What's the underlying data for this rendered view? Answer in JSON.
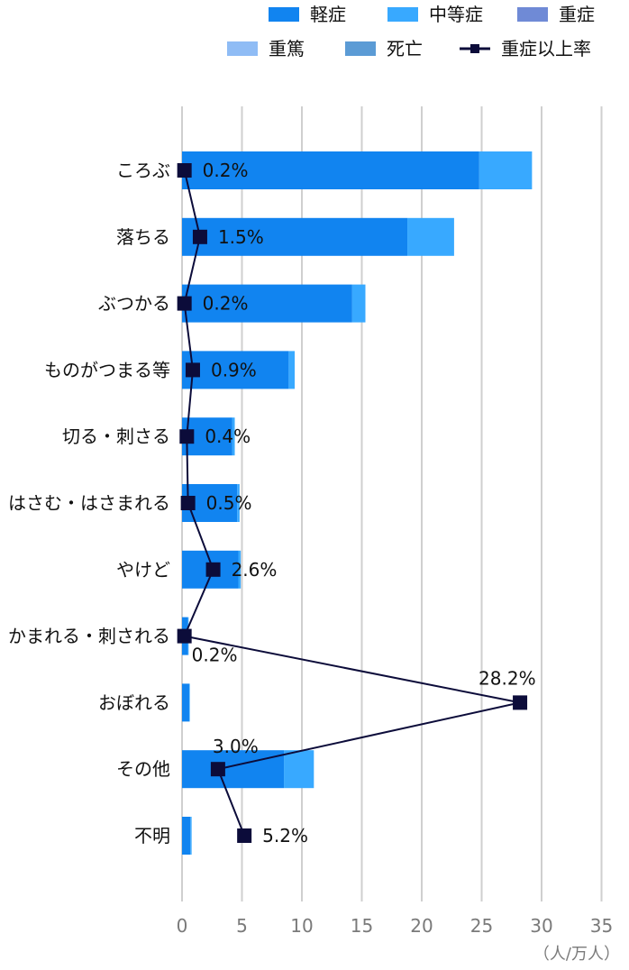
{
  "colors": {
    "mild": "#1184f0",
    "moderate": "#38a9ff",
    "severe": "#6f8ad6",
    "critical": "#8fbcf5",
    "death": "#5b9bd5",
    "severe_rate_line": "#0c0c3a",
    "grid": "#cfcfcf",
    "axis_text": "#7a7a7a"
  },
  "chart_data": {
    "type": "bar",
    "orientation": "horizontal",
    "stacked": true,
    "categories": [
      "ころぶ",
      "落ちる",
      "ぶつかる",
      "ものがつまる等",
      "切る・刺さる",
      "はさむ・はさまれる",
      "やけど",
      "かまれる・刺される",
      "おぼれる",
      "その他",
      "不明"
    ],
    "series": [
      {
        "name": "軽症",
        "values": [
          24.8,
          18.8,
          14.2,
          8.9,
          4.2,
          4.6,
          4.7,
          0.5,
          0.6,
          8.5,
          0.7
        ]
      },
      {
        "name": "中等症",
        "values": [
          4.4,
          3.9,
          1.1,
          0.5,
          0.2,
          0.2,
          0.2,
          0.05,
          0.05,
          2.5,
          0.1
        ]
      },
      {
        "name": "重症",
        "values": [
          0,
          0,
          0,
          0,
          0,
          0,
          0,
          0,
          0,
          0,
          0
        ]
      },
      {
        "name": "重篤",
        "values": [
          0,
          0,
          0,
          0,
          0,
          0,
          0,
          0,
          0,
          0,
          0
        ]
      },
      {
        "name": "死亡",
        "values": [
          0,
          0,
          0,
          0,
          0,
          0,
          0,
          0,
          0,
          0,
          0
        ]
      }
    ],
    "line_series": {
      "name": "重症以上率",
      "values": [
        0.2,
        1.5,
        0.2,
        0.9,
        0.4,
        0.5,
        2.6,
        0.2,
        28.2,
        3.0,
        5.2
      ],
      "labels": [
        "0.2%",
        "1.5%",
        "0.2%",
        "0.9%",
        "0.4%",
        "0.5%",
        "2.6%",
        "0.2%",
        "28.2%",
        "3.0%",
        "5.2%"
      ]
    },
    "x_ticks": [
      "0",
      "5",
      "10",
      "15",
      "20",
      "25",
      "30",
      "35"
    ],
    "xlim": [
      0,
      35
    ],
    "x_unit": "（人/万人）",
    "grid": true,
    "legend_position": "top-right"
  }
}
